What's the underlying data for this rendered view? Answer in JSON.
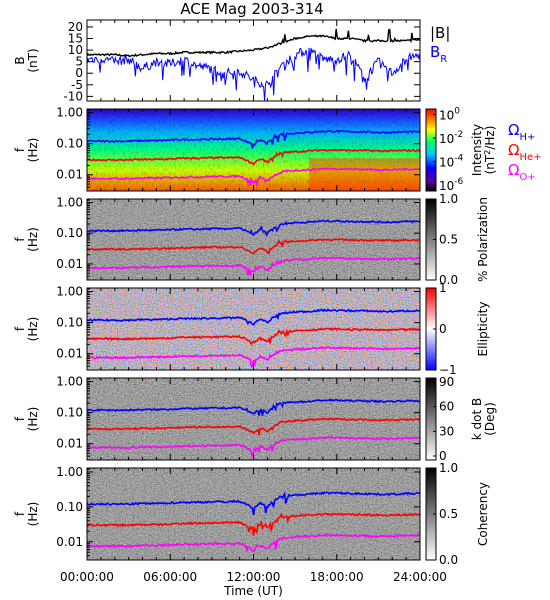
{
  "title": "ACE Mag 2003-314",
  "colors": {
    "btotal": "#000000",
    "br": "#0000ff",
    "h": "#0000ff",
    "he": "#ff0000",
    "o": "#ff00ff"
  },
  "chart_data": {
    "type": "line",
    "shared_x": {
      "label": "Time (UT)",
      "range": [
        0,
        24
      ],
      "tick_labels": [
        "00:00:00",
        "06:00:00",
        "12:00:00",
        "18:00:00",
        "24:00:00"
      ]
    },
    "panels": [
      {
        "id": "b-field",
        "type": "line",
        "ylabel": [
          "B",
          "(nT)"
        ],
        "ylim": [
          -12,
          23
        ],
        "yticks": [
          "20",
          "15",
          "10",
          "5",
          "0",
          "-5",
          "-10"
        ],
        "ytick_values": [
          20,
          15,
          10,
          5,
          0,
          -5,
          -10
        ],
        "legend": [
          "|B|",
          "B",
          "R"
        ],
        "series": [
          {
            "name": "|B|",
            "x": [
              0,
              1,
              2,
              3,
              4,
              5,
              6,
              7,
              8,
              9,
              10,
              11,
              12,
              13,
              14,
              15,
              16,
              17,
              18,
              19,
              20,
              21,
              22,
              23,
              24
            ],
            "values": [
              8,
              8,
              8,
              7.5,
              8,
              8.5,
              8.5,
              9,
              9,
              9,
              9,
              9.5,
              10,
              11,
              13,
              15,
              16,
              16,
              15,
              15,
              14,
              14,
              14,
              14,
              14.5
            ]
          },
          {
            "name": "B",
            "x": [
              0,
              1,
              2,
              3,
              4,
              5,
              6,
              7,
              8,
              9,
              10,
              11,
              12,
              13,
              14,
              15,
              16,
              17,
              18,
              19,
              20,
              21,
              22,
              23,
              24
            ],
            "values": [
              6,
              6.5,
              5,
              6,
              2,
              5,
              4,
              6,
              3,
              2,
              0,
              1,
              -3,
              -5,
              3,
              8,
              10,
              6,
              6,
              8,
              -2,
              5,
              0,
              6,
              8
            ]
          }
        ]
      },
      {
        "id": "intensity",
        "type": "heatmap",
        "ylabel": [
          "f",
          "(Hz)"
        ],
        "yscale": "log",
        "ylim": [
          0.003,
          1.3
        ],
        "yticks": [
          "1.00",
          "0.10",
          "0.01"
        ],
        "ytick_values": [
          1,
          0.1,
          0.01
        ],
        "colorbar": {
          "label": [
            "Intensity",
            "(nT",
            "2",
            "/Hz)"
          ],
          "ticks": [
            "10",
            "0",
            "10",
            "-2",
            "10",
            "-4",
            "10",
            "-6"
          ],
          "tick_values": [
            1,
            0.01,
            0.0001,
            1e-06
          ]
        },
        "legend": [
          "Ω",
          "H+",
          "Ω",
          "He+",
          "Ω",
          "O+"
        ]
      },
      {
        "id": "polarization",
        "type": "heatmap",
        "ylabel": [
          "f",
          "(Hz)"
        ],
        "yscale": "log",
        "ylim": [
          0.003,
          1.3
        ],
        "yticks": [
          "1.00",
          "0.10",
          "0.01"
        ],
        "ytick_values": [
          1,
          0.1,
          0.01
        ],
        "colorbar": {
          "label": [
            "% Polarization"
          ],
          "ticks": [
            "1.0",
            "0.5",
            "0.0"
          ],
          "tick_values": [
            1,
            0.5,
            0
          ]
        }
      },
      {
        "id": "ellipticity",
        "type": "heatmap",
        "ylabel": [
          "f",
          "(Hz)"
        ],
        "yscale": "log",
        "ylim": [
          0.003,
          1.3
        ],
        "yticks": [
          "1.00",
          "0.10",
          "0.01"
        ],
        "ytick_values": [
          1,
          0.1,
          0.01
        ],
        "colorbar": {
          "label": [
            "Ellipticity"
          ],
          "ticks": [
            "1",
            "0",
            "−1"
          ],
          "tick_values": [
            1,
            0,
            -1
          ]
        }
      },
      {
        "id": "kdotb",
        "type": "heatmap",
        "ylabel": [
          "f",
          "(Hz)"
        ],
        "yscale": "log",
        "ylim": [
          0.003,
          1.3
        ],
        "yticks": [
          "1.00",
          "0.10",
          "0.01"
        ],
        "ytick_values": [
          1,
          0.1,
          0.01
        ],
        "colorbar": {
          "label": [
            "k dot B",
            "(Deg)"
          ],
          "ticks": [
            "90",
            "60",
            "30",
            "0"
          ],
          "tick_values": [
            90,
            60,
            30,
            0
          ]
        }
      },
      {
        "id": "coherency",
        "type": "heatmap",
        "ylabel": [
          "f",
          "(Hz)"
        ],
        "yscale": "log",
        "ylim": [
          0.003,
          1.3
        ],
        "yticks": [
          "1.00",
          "0.10",
          "0.01"
        ],
        "ytick_values": [
          1,
          0.1,
          0.01
        ],
        "colorbar": {
          "label": [
            "Coherency"
          ],
          "ticks": [
            "1.0",
            "0.5",
            "0.0"
          ],
          "tick_values": [
            1,
            0.5,
            0
          ]
        }
      }
    ],
    "gyrofrequency_series": [
      {
        "name": "H+",
        "x": [
          0,
          1,
          2,
          3,
          4,
          5,
          6,
          7,
          8,
          9,
          10,
          11,
          12,
          12.5,
          13,
          14,
          15,
          16,
          17,
          18,
          19,
          20,
          21,
          22,
          23,
          24
        ],
        "values": [
          0.12,
          0.12,
          0.12,
          0.12,
          0.125,
          0.125,
          0.13,
          0.135,
          0.135,
          0.14,
          0.14,
          0.145,
          0.09,
          0.13,
          0.1,
          0.2,
          0.22,
          0.23,
          0.25,
          0.25,
          0.24,
          0.24,
          0.23,
          0.23,
          0.24,
          0.24
        ]
      },
      {
        "name": "He+",
        "x": [
          0,
          1,
          2,
          3,
          4,
          5,
          6,
          7,
          8,
          9,
          10,
          11,
          12,
          12.5,
          13,
          14,
          15,
          16,
          17,
          18,
          19,
          20,
          21,
          22,
          23,
          24
        ],
        "values": [
          0.03,
          0.03,
          0.03,
          0.03,
          0.031,
          0.031,
          0.032,
          0.034,
          0.034,
          0.035,
          0.035,
          0.036,
          0.022,
          0.033,
          0.025,
          0.05,
          0.055,
          0.058,
          0.062,
          0.062,
          0.06,
          0.06,
          0.058,
          0.058,
          0.06,
          0.06
        ]
      },
      {
        "name": "O+",
        "x": [
          0,
          1,
          2,
          3,
          4,
          5,
          6,
          7,
          8,
          9,
          10,
          11,
          12,
          12.5,
          13,
          14,
          15,
          16,
          17,
          18,
          19,
          20,
          21,
          22,
          23,
          24
        ],
        "values": [
          0.0075,
          0.0075,
          0.0075,
          0.0075,
          0.0078,
          0.0078,
          0.0081,
          0.0084,
          0.0084,
          0.0088,
          0.0088,
          0.009,
          0.0056,
          0.0081,
          0.0063,
          0.0125,
          0.0138,
          0.0144,
          0.0156,
          0.0156,
          0.015,
          0.015,
          0.0144,
          0.0144,
          0.015,
          0.015
        ]
      }
    ]
  }
}
